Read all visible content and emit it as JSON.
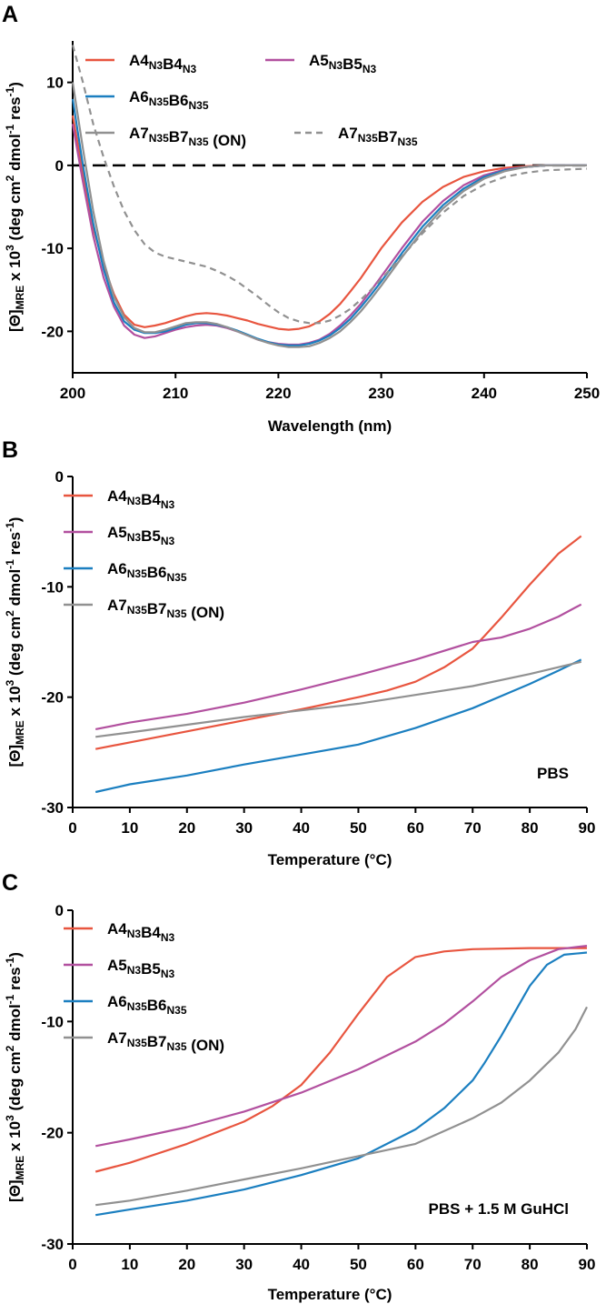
{
  "chart_data": [
    {
      "type": "line",
      "panel_letter": "A",
      "xlabel": "Wavelength (nm)",
      "ylabel": "[Θ]MRE x 103 (deg cm2 dmol-1 res-1)",
      "xlim": [
        200,
        250
      ],
      "ylim": [
        -25,
        15
      ],
      "xticks": [
        200,
        210,
        220,
        230,
        240,
        250
      ],
      "yticks": [
        -20,
        -10,
        0,
        10
      ],
      "grid": false,
      "legend_position": "top",
      "zero_line": {
        "y": 0,
        "style": "dashed",
        "color": "#000000"
      },
      "series": [
        {
          "name": "A4N3B4N3",
          "color": "#e8553f",
          "dash": false,
          "x": [
            200,
            201,
            202,
            203,
            204,
            205,
            206,
            207,
            208,
            209,
            210,
            211,
            212,
            213,
            214,
            215,
            216,
            217,
            218,
            219,
            220,
            221,
            222,
            223,
            224,
            225,
            226,
            227,
            228,
            229,
            230,
            232,
            234,
            236,
            238,
            240,
            242,
            244,
            246,
            248,
            250
          ],
          "y": [
            6,
            -1,
            -7.5,
            -12,
            -15.5,
            -18,
            -19.2,
            -19.5,
            -19.3,
            -19,
            -18.6,
            -18.2,
            -17.9,
            -17.8,
            -17.9,
            -18.1,
            -18.4,
            -18.7,
            -19.1,
            -19.4,
            -19.7,
            -19.8,
            -19.7,
            -19.4,
            -18.8,
            -17.9,
            -16.7,
            -15.2,
            -13.6,
            -11.8,
            -10,
            -6.9,
            -4.4,
            -2.6,
            -1.4,
            -0.7,
            -0.3,
            -0.1,
            0,
            0,
            0
          ]
        },
        {
          "name": "A5N3B5N3",
          "color": "#b2509f",
          "dash": false,
          "x": [
            200,
            201,
            202,
            203,
            204,
            205,
            206,
            207,
            208,
            209,
            210,
            211,
            212,
            213,
            214,
            215,
            216,
            217,
            218,
            219,
            220,
            221,
            222,
            223,
            224,
            225,
            226,
            227,
            228,
            229,
            230,
            232,
            234,
            236,
            238,
            240,
            242,
            244,
            246,
            248,
            250
          ],
          "y": [
            5,
            -2,
            -8.5,
            -13.5,
            -17,
            -19.3,
            -20.4,
            -20.8,
            -20.6,
            -20.2,
            -19.8,
            -19.5,
            -19.3,
            -19.2,
            -19.3,
            -19.6,
            -20,
            -20.5,
            -21,
            -21.3,
            -21.5,
            -21.6,
            -21.6,
            -21.4,
            -21,
            -20.3,
            -19.3,
            -18.1,
            -16.7,
            -15.1,
            -13.4,
            -10,
            -6.8,
            -4.3,
            -2.4,
            -1.2,
            -0.5,
            -0.2,
            0,
            0,
            0
          ]
        },
        {
          "name": "A6N35B6N35",
          "color": "#1b7fc0",
          "dash": false,
          "x": [
            200,
            201,
            202,
            203,
            204,
            205,
            206,
            207,
            208,
            209,
            210,
            211,
            212,
            213,
            214,
            215,
            216,
            217,
            218,
            219,
            220,
            221,
            222,
            223,
            224,
            225,
            226,
            227,
            228,
            229,
            230,
            232,
            234,
            236,
            238,
            240,
            242,
            244,
            246,
            248,
            250
          ],
          "y": [
            8,
            0,
            -7,
            -12.5,
            -16.5,
            -18.8,
            -19.8,
            -20.2,
            -20.2,
            -20,
            -19.6,
            -19.2,
            -19,
            -19,
            -19.2,
            -19.5,
            -19.9,
            -20.4,
            -20.9,
            -21.3,
            -21.6,
            -21.7,
            -21.7,
            -21.5,
            -21.1,
            -20.5,
            -19.6,
            -18.5,
            -17.1,
            -15.6,
            -14,
            -10.6,
            -7.4,
            -4.8,
            -2.8,
            -1.4,
            -0.6,
            -0.2,
            0,
            0,
            0
          ]
        },
        {
          "name": "A7N35B7N35 (ON)",
          "color": "#919191",
          "dash": false,
          "x": [
            200,
            201,
            202,
            203,
            204,
            205,
            206,
            207,
            208,
            209,
            210,
            211,
            212,
            213,
            214,
            215,
            216,
            217,
            218,
            219,
            220,
            221,
            222,
            223,
            224,
            225,
            226,
            227,
            228,
            229,
            230,
            232,
            234,
            236,
            238,
            240,
            242,
            244,
            246,
            248,
            250
          ],
          "y": [
            10,
            2,
            -5.5,
            -11.5,
            -15.8,
            -18.3,
            -19.6,
            -20.1,
            -20.1,
            -19.8,
            -19.4,
            -19,
            -18.9,
            -18.9,
            -19.1,
            -19.5,
            -20,
            -20.5,
            -21,
            -21.4,
            -21.7,
            -21.9,
            -21.9,
            -21.8,
            -21.4,
            -20.8,
            -20,
            -18.9,
            -17.6,
            -16.1,
            -14.5,
            -11.1,
            -7.9,
            -5.2,
            -3.1,
            -1.6,
            -0.7,
            -0.2,
            0,
            0,
            0
          ]
        },
        {
          "name": "A7N35B7N35",
          "color": "#919191",
          "dash": true,
          "x": [
            200,
            201,
            202,
            203,
            204,
            205,
            206,
            207,
            208,
            209,
            210,
            211,
            212,
            213,
            214,
            215,
            216,
            217,
            218,
            219,
            220,
            221,
            222,
            223,
            224,
            225,
            226,
            227,
            228,
            229,
            230,
            232,
            234,
            236,
            238,
            240,
            242,
            244,
            246,
            248,
            250
          ],
          "y": [
            14.5,
            10,
            5,
            1,
            -2.5,
            -5.5,
            -7.8,
            -9.5,
            -10.5,
            -11,
            -11.3,
            -11.6,
            -11.9,
            -12.2,
            -12.7,
            -13.3,
            -14,
            -14.9,
            -15.8,
            -16.8,
            -17.7,
            -18.4,
            -18.8,
            -19,
            -19,
            -18.7,
            -18.1,
            -17.3,
            -16.2,
            -15,
            -13.7,
            -11,
            -8.2,
            -5.7,
            -3.7,
            -2.3,
            -1.4,
            -0.9,
            -0.6,
            -0.5,
            -0.4
          ]
        }
      ]
    },
    {
      "type": "line",
      "panel_letter": "B",
      "xlabel": "Temperature (°C)",
      "ylabel": "[Θ]MRE x 103 (deg cm2 dmol-1 res-1)",
      "xlim": [
        0,
        90
      ],
      "ylim": [
        -30,
        0
      ],
      "xticks": [
        0,
        10,
        20,
        30,
        40,
        50,
        60,
        70,
        80,
        90
      ],
      "yticks": [
        -30,
        -20,
        -10,
        0
      ],
      "grid": false,
      "legend_position": "top-left",
      "annotation": "PBS",
      "series": [
        {
          "name": "A4N3B4N3",
          "color": "#e8553f",
          "dash": false,
          "x": [
            4,
            10,
            20,
            30,
            40,
            50,
            55,
            60,
            65,
            70,
            72,
            75,
            80,
            85,
            89
          ],
          "y": [
            -24.7,
            -24.1,
            -23.1,
            -22.1,
            -21.1,
            -20,
            -19.4,
            -18.6,
            -17.3,
            -15.6,
            -14.5,
            -12.8,
            -9.8,
            -7,
            -5.4
          ]
        },
        {
          "name": "A5N3B5N3",
          "color": "#b2509f",
          "dash": false,
          "x": [
            4,
            10,
            20,
            30,
            40,
            50,
            60,
            70,
            75,
            80,
            85,
            89
          ],
          "y": [
            -22.9,
            -22.3,
            -21.5,
            -20.5,
            -19.3,
            -18,
            -16.6,
            -15,
            -14.6,
            -13.8,
            -12.7,
            -11.6
          ]
        },
        {
          "name": "A6N35B6N35",
          "color": "#1b7fc0",
          "dash": false,
          "x": [
            4,
            10,
            20,
            30,
            40,
            50,
            60,
            70,
            80,
            85,
            89
          ],
          "y": [
            -28.6,
            -27.9,
            -27.1,
            -26.1,
            -25.2,
            -24.3,
            -22.8,
            -21,
            -18.8,
            -17.6,
            -16.6
          ]
        },
        {
          "name": "A7N35B7N35 (ON)",
          "color": "#919191",
          "dash": false,
          "x": [
            4,
            10,
            20,
            30,
            40,
            50,
            60,
            70,
            80,
            89
          ],
          "y": [
            -23.6,
            -23.2,
            -22.5,
            -21.8,
            -21.2,
            -20.6,
            -19.8,
            -19,
            -17.9,
            -16.8
          ]
        }
      ]
    },
    {
      "type": "line",
      "panel_letter": "C",
      "xlabel": "Temperature (°C)",
      "ylabel": "[Θ]MRE x 103 (deg cm2 dmol-1 res-1)",
      "xlim": [
        0,
        90
      ],
      "ylim": [
        -30,
        0
      ],
      "xticks": [
        0,
        10,
        20,
        30,
        40,
        50,
        60,
        70,
        80,
        90
      ],
      "yticks": [
        -30,
        -20,
        -10,
        0
      ],
      "grid": false,
      "legend_position": "top-left",
      "annotation": "PBS + 1.5 M GuHCl",
      "series": [
        {
          "name": "A4N3B4N3",
          "color": "#e8553f",
          "dash": false,
          "x": [
            4,
            10,
            20,
            30,
            35,
            40,
            45,
            50,
            55,
            60,
            65,
            70,
            80,
            90
          ],
          "y": [
            -23.5,
            -22.7,
            -21,
            -19,
            -17.6,
            -15.7,
            -12.8,
            -9.3,
            -6,
            -4.2,
            -3.7,
            -3.5,
            -3.4,
            -3.4
          ]
        },
        {
          "name": "A5N3B5N3",
          "color": "#b2509f",
          "dash": false,
          "x": [
            4,
            10,
            20,
            30,
            40,
            50,
            60,
            65,
            70,
            75,
            80,
            85,
            90
          ],
          "y": [
            -21.2,
            -20.6,
            -19.5,
            -18.1,
            -16.4,
            -14.3,
            -11.8,
            -10.2,
            -8.2,
            -6,
            -4.5,
            -3.5,
            -3.2
          ]
        },
        {
          "name": "A6N35B6N35",
          "color": "#1b7fc0",
          "dash": false,
          "x": [
            4,
            10,
            20,
            30,
            40,
            50,
            60,
            65,
            70,
            72,
            75,
            78,
            80,
            83,
            86,
            90
          ],
          "y": [
            -27.4,
            -26.9,
            -26.1,
            -25.1,
            -23.8,
            -22.3,
            -19.7,
            -17.8,
            -15.3,
            -13.8,
            -11.3,
            -8.6,
            -6.8,
            -4.9,
            -4,
            -3.8
          ]
        },
        {
          "name": "A7N35B7N35 (ON)",
          "color": "#919191",
          "dash": false,
          "x": [
            4,
            10,
            20,
            30,
            40,
            50,
            60,
            70,
            75,
            80,
            85,
            88,
            90
          ],
          "y": [
            -26.5,
            -26.1,
            -25.2,
            -24.2,
            -23.2,
            -22.1,
            -21,
            -18.7,
            -17.3,
            -15.3,
            -12.8,
            -10.7,
            -8.7
          ]
        }
      ]
    }
  ]
}
